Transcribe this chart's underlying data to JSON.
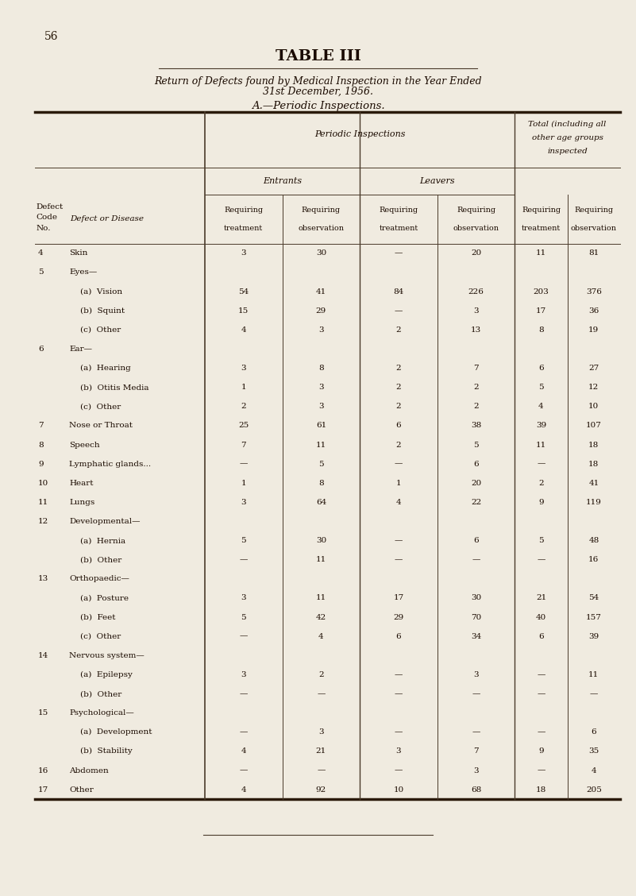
{
  "page_number": "56",
  "title": "TABLE III",
  "subtitle1": "Return of Defects found by Medical Inspection in the Year Ended",
  "subtitle2": "31st December, 1956.",
  "section": "A.—Periodic Inspections.",
  "bg_color": "#f0ebe0",
  "rows": [
    {
      "code": "4",
      "indent": 0,
      "name": "Skin",
      "dots": true,
      "v1": "3",
      "v2": "30",
      "v3": "—",
      "v4": "20",
      "v5": "11",
      "v6": "81"
    },
    {
      "code": "5",
      "indent": 0,
      "name": "Eyes—",
      "dots": false,
      "v1": "",
      "v2": "",
      "v3": "",
      "v4": "",
      "v5": "",
      "v6": ""
    },
    {
      "code": "",
      "indent": 1,
      "name": "(a)  Vision",
      "dots": true,
      "v1": "54",
      "v2": "41",
      "v3": "84",
      "v4": "226",
      "v5": "203",
      "v6": "376"
    },
    {
      "code": "",
      "indent": 1,
      "name": "(b)  Squint",
      "dots": true,
      "v1": "15",
      "v2": "29",
      "v3": "—",
      "v4": "3",
      "v5": "17",
      "v6": "36"
    },
    {
      "code": "",
      "indent": 1,
      "name": "(c)  Other",
      "dots": true,
      "v1": "4",
      "v2": "3",
      "v3": "2",
      "v4": "13",
      "v5": "8",
      "v6": "19"
    },
    {
      "code": "6",
      "indent": 0,
      "name": "Ear—",
      "dots": false,
      "v1": "",
      "v2": "",
      "v3": "",
      "v4": "",
      "v5": "",
      "v6": ""
    },
    {
      "code": "",
      "indent": 1,
      "name": "(a)  Hearing",
      "dots": true,
      "v1": "3",
      "v2": "8",
      "v3": "2",
      "v4": "7",
      "v5": "6",
      "v6": "27"
    },
    {
      "code": "",
      "indent": 1,
      "name": "(b)  Otitis Media",
      "dots": false,
      "v1": "1",
      "v2": "3",
      "v3": "2",
      "v4": "2",
      "v5": "5",
      "v6": "12"
    },
    {
      "code": "",
      "indent": 1,
      "name": "(c)  Other",
      "dots": true,
      "v1": "2",
      "v2": "3",
      "v3": "2",
      "v4": "2",
      "v5": "4",
      "v6": "10"
    },
    {
      "code": "7",
      "indent": 0,
      "name": "Nose or Throat",
      "dots": true,
      "v1": "25",
      "v2": "61",
      "v3": "6",
      "v4": "38",
      "v5": "39",
      "v6": "107"
    },
    {
      "code": "8",
      "indent": 0,
      "name": "Speech",
      "dots": true,
      "v1": "7",
      "v2": "11",
      "v3": "2",
      "v4": "5",
      "v5": "11",
      "v6": "18"
    },
    {
      "code": "9",
      "indent": 0,
      "name": "Lymphatic glands...",
      "dots": false,
      "v1": "—",
      "v2": "5",
      "v3": "—",
      "v4": "6",
      "v5": "—",
      "v6": "18"
    },
    {
      "code": "10",
      "indent": 0,
      "name": "Heart",
      "dots": true,
      "v1": "1",
      "v2": "8",
      "v3": "1",
      "v4": "20",
      "v5": "2",
      "v6": "41"
    },
    {
      "code": "11",
      "indent": 0,
      "name": "Lungs",
      "dots": true,
      "v1": "3",
      "v2": "64",
      "v3": "4",
      "v4": "22",
      "v5": "9",
      "v6": "119"
    },
    {
      "code": "12",
      "indent": 0,
      "name": "Developmental—",
      "dots": false,
      "v1": "",
      "v2": "",
      "v3": "",
      "v4": "",
      "v5": "",
      "v6": ""
    },
    {
      "code": "",
      "indent": 1,
      "name": "(a)  Hernia",
      "dots": true,
      "v1": "5",
      "v2": "30",
      "v3": "—",
      "v4": "6",
      "v5": "5",
      "v6": "48"
    },
    {
      "code": "",
      "indent": 1,
      "name": "(b)  Other",
      "dots": true,
      "v1": "—",
      "v2": "11",
      "v3": "—",
      "v4": "—",
      "v5": "—",
      "v6": "16"
    },
    {
      "code": "13",
      "indent": 0,
      "name": "Orthopaedic—",
      "dots": false,
      "v1": "",
      "v2": "",
      "v3": "",
      "v4": "",
      "v5": "",
      "v6": ""
    },
    {
      "code": "",
      "indent": 1,
      "name": "(a)  Posture",
      "dots": true,
      "v1": "3",
      "v2": "11",
      "v3": "17",
      "v4": "30",
      "v5": "21",
      "v6": "54"
    },
    {
      "code": "",
      "indent": 1,
      "name": "(b)  Feet",
      "dots": true,
      "v1": "5",
      "v2": "42",
      "v3": "29",
      "v4": "70",
      "v5": "40",
      "v6": "157"
    },
    {
      "code": "",
      "indent": 1,
      "name": "(c)  Other",
      "dots": true,
      "v1": "—",
      "v2": "4",
      "v3": "6",
      "v4": "34",
      "v5": "6",
      "v6": "39"
    },
    {
      "code": "14",
      "indent": 0,
      "name": "Nervous system—",
      "dots": false,
      "v1": "",
      "v2": "",
      "v3": "",
      "v4": "",
      "v5": "",
      "v6": ""
    },
    {
      "code": "",
      "indent": 1,
      "name": "(a)  Epilepsy",
      "dots": true,
      "v1": "3",
      "v2": "2",
      "v3": "—",
      "v4": "3",
      "v5": "—",
      "v6": "11"
    },
    {
      "code": "",
      "indent": 1,
      "name": "(b)  Other",
      "dots": true,
      "v1": "—",
      "v2": "—",
      "v3": "—",
      "v4": "—",
      "v5": "—",
      "v6": "—"
    },
    {
      "code": "15",
      "indent": 0,
      "name": "Psychological—",
      "dots": false,
      "v1": "",
      "v2": "",
      "v3": "",
      "v4": "",
      "v5": "",
      "v6": ""
    },
    {
      "code": "",
      "indent": 1,
      "name": "(a)  Development",
      "dots": false,
      "v1": "—",
      "v2": "3",
      "v3": "—",
      "v4": "—",
      "v5": "—",
      "v6": "6"
    },
    {
      "code": "",
      "indent": 1,
      "name": "(b)  Stability",
      "dots": true,
      "v1": "4",
      "v2": "21",
      "v3": "3",
      "v4": "7",
      "v5": "9",
      "v6": "35"
    },
    {
      "code": "16",
      "indent": 0,
      "name": "Abdomen",
      "dots": true,
      "v1": "—",
      "v2": "—",
      "v3": "—",
      "v4": "3",
      "v5": "—",
      "v6": "4"
    },
    {
      "code": "17",
      "indent": 0,
      "name": "Other",
      "dots": true,
      "v1": "4",
      "v2": "92",
      "v3": "10",
      "v4": "68",
      "v5": "18",
      "v6": "205"
    }
  ]
}
